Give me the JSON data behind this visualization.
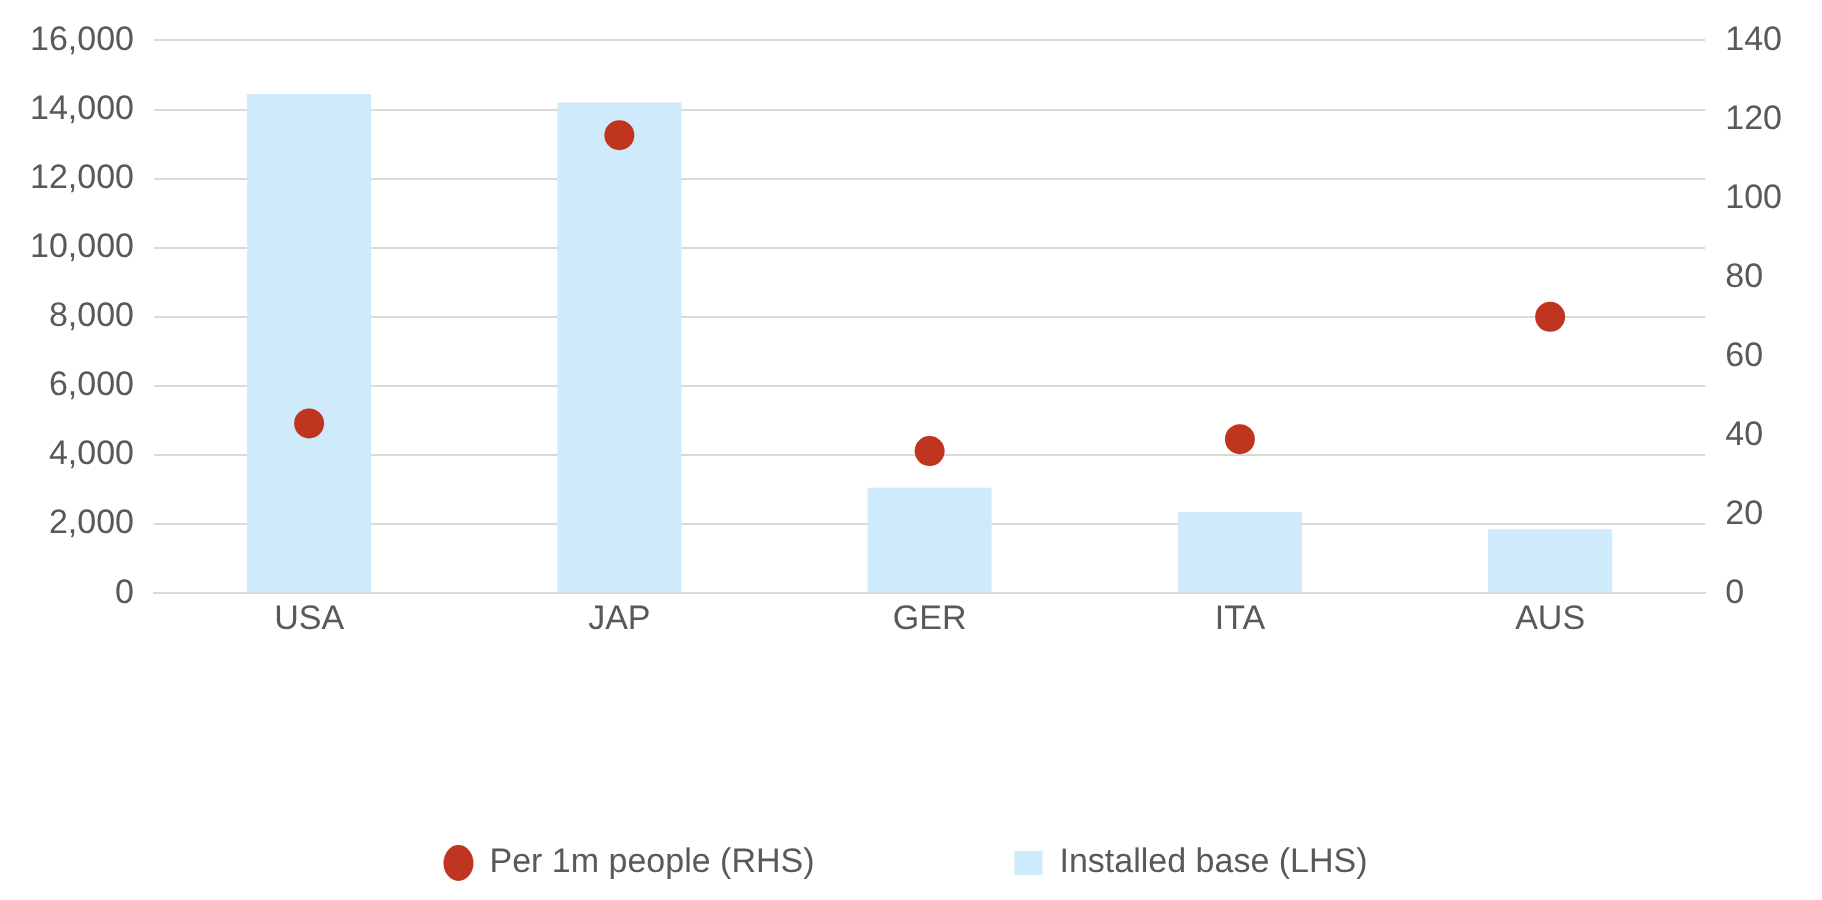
{
  "chart_data": {
    "type": "bar",
    "categories": [
      "USA",
      "JAP",
      "GER",
      "ITA",
      "AUS"
    ],
    "series": [
      {
        "name": "Installed base (LHS)",
        "color": "#cfeafb",
        "values": [
          14450,
          14200,
          3050,
          2350,
          1850
        ]
      },
      {
        "name": "Per 1m people (RHS)",
        "type": "scatter",
        "axis": "y2",
        "color": "#c0351f",
        "values": [
          43,
          116,
          36,
          39,
          70
        ]
      }
    ],
    "ylim": [
      0,
      16000
    ],
    "yticks": [
      {
        "value": 0,
        "label": "0"
      },
      {
        "value": 2000,
        "label": "2,000"
      },
      {
        "value": 4000,
        "label": "4,000"
      },
      {
        "value": 6000,
        "label": "6,000"
      },
      {
        "value": 8000,
        "label": "8,000"
      },
      {
        "value": 10000,
        "label": "10,000"
      },
      {
        "value": 12000,
        "label": "12,000"
      },
      {
        "value": 14000,
        "label": "14,000"
      },
      {
        "value": 16000,
        "label": "16,000"
      }
    ],
    "y2lim": [
      0,
      140
    ],
    "y2ticks": [
      0,
      20,
      40,
      60,
      80,
      100,
      120,
      140
    ],
    "grid": "y",
    "legend": "bottom",
    "marker": "circle"
  }
}
